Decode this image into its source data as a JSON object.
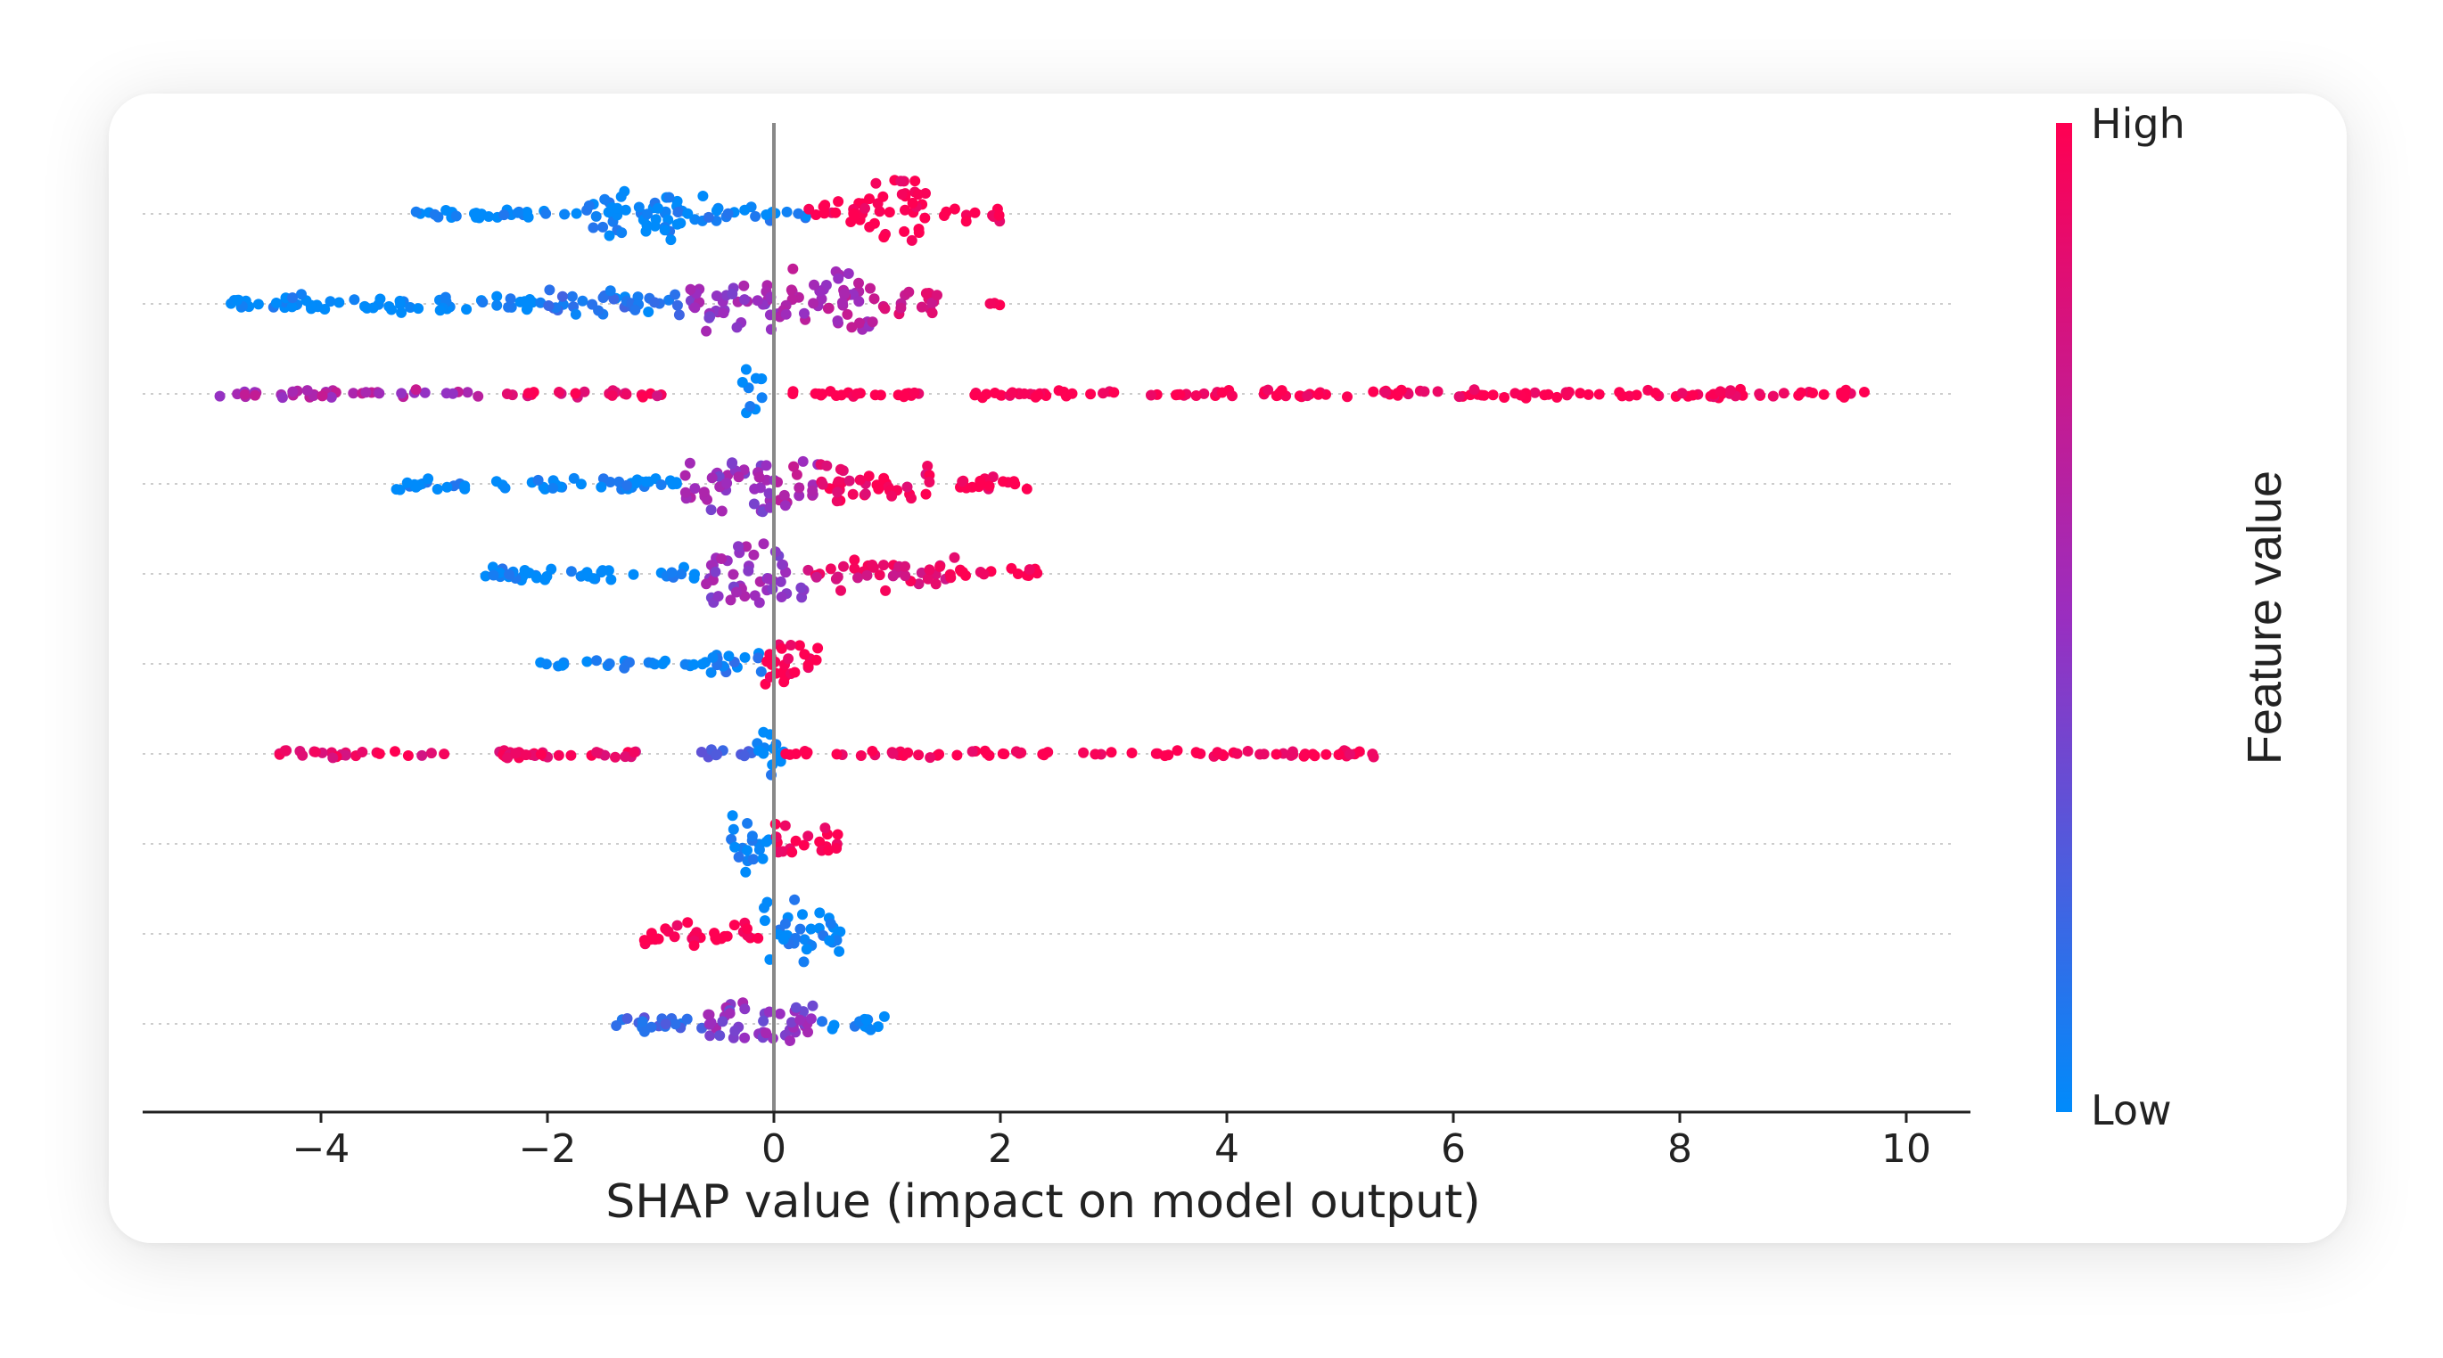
{
  "chart_data": {
    "type": "scatter",
    "subtype": "shap-beeswarm-summary",
    "title": "",
    "xlabel": "SHAP value (impact on model output)",
    "ylabel": "",
    "xlim": [
      -5.6,
      10.4
    ],
    "xticks": [
      -4,
      -2,
      0,
      2,
      4,
      6,
      8,
      10
    ],
    "xtick_labels": [
      "−4",
      "−2",
      "0",
      "2",
      "4",
      "6",
      "8",
      "10"
    ],
    "zero_line": 0,
    "grid": "horizontal dotted row guides",
    "feature_names_visible": false,
    "colors": {
      "low": "#008bfb",
      "mid": "#9a2ec0",
      "high": "#ff0052",
      "zero_line": "#888888",
      "row_guide": "#cccccc"
    },
    "colorbar": {
      "high_label": "High",
      "low_label": "Low",
      "title": "Feature value",
      "placement": "right"
    },
    "rows": [
      {
        "min": -3.3,
        "max": 2.0,
        "segments": [
          {
            "from": -3.3,
            "to": -1.7,
            "color": 0.0,
            "spread": 0.15
          },
          {
            "from": -1.7,
            "to": -0.6,
            "color": 0.0,
            "spread": 0.75
          },
          {
            "from": -0.6,
            "to": 0.3,
            "color": 0.05,
            "spread": 0.2
          },
          {
            "from": 0.3,
            "to": 0.8,
            "color": 1.0,
            "spread": 0.45
          },
          {
            "from": 0.8,
            "to": 1.4,
            "color": 1.0,
            "spread": 0.9
          },
          {
            "from": 1.4,
            "to": 2.0,
            "color": 1.0,
            "spread": 0.2
          }
        ]
      },
      {
        "min": -4.8,
        "max": 2.0,
        "segments": [
          {
            "from": -4.8,
            "to": -2.0,
            "color": 0.0,
            "spread": 0.25
          },
          {
            "from": -2.0,
            "to": -0.8,
            "color": 0.1,
            "spread": 0.4
          },
          {
            "from": -0.8,
            "to": 0.0,
            "color": 0.5,
            "spread": 0.75
          },
          {
            "from": 0.0,
            "to": 0.9,
            "color": 0.6,
            "spread": 0.95
          },
          {
            "from": 0.9,
            "to": 1.5,
            "color": 0.8,
            "spread": 0.35
          },
          {
            "from": 1.9,
            "to": 2.0,
            "color": 1.0,
            "spread": 0.1
          }
        ]
      },
      {
        "min": -5.0,
        "max": 9.7,
        "segments": [
          {
            "from": -5.0,
            "to": -2.6,
            "color": 0.6,
            "spread": 0.12
          },
          {
            "from": -2.4,
            "to": -0.9,
            "color": 0.9,
            "spread": 0.1
          },
          {
            "from": -0.3,
            "to": -0.1,
            "color": 0.0,
            "spread": 0.9
          },
          {
            "from": 0.1,
            "to": 4.0,
            "color": 1.0,
            "spread": 0.1
          },
          {
            "from": 4.0,
            "to": 9.7,
            "color": 1.0,
            "spread": 0.12
          }
        ]
      },
      {
        "min": -3.4,
        "max": 2.3,
        "segments": [
          {
            "from": -3.4,
            "to": -0.8,
            "color": 0.0,
            "spread": 0.2
          },
          {
            "from": -0.8,
            "to": 0.0,
            "color": 0.5,
            "spread": 0.85
          },
          {
            "from": 0.0,
            "to": 0.4,
            "color": 0.6,
            "spread": 0.7
          },
          {
            "from": 0.4,
            "to": 1.4,
            "color": 0.95,
            "spread": 0.6
          },
          {
            "from": 1.4,
            "to": 2.3,
            "color": 1.0,
            "spread": 0.2
          }
        ]
      },
      {
        "min": -2.6,
        "max": 2.4,
        "segments": [
          {
            "from": -2.6,
            "to": -0.6,
            "color": 0.0,
            "spread": 0.2
          },
          {
            "from": -0.6,
            "to": 0.3,
            "color": 0.5,
            "spread": 0.9
          },
          {
            "from": 0.3,
            "to": 1.6,
            "color": 0.85,
            "spread": 0.45
          },
          {
            "from": 1.6,
            "to": 2.4,
            "color": 1.0,
            "spread": 0.15
          }
        ]
      },
      {
        "min": -2.1,
        "max": 0.4,
        "segments": [
          {
            "from": -2.1,
            "to": -0.6,
            "color": 0.0,
            "spread": 0.12
          },
          {
            "from": -0.6,
            "to": -0.1,
            "color": 0.05,
            "spread": 0.4
          },
          {
            "from": -0.1,
            "to": 0.4,
            "color": 1.0,
            "spread": 0.85
          }
        ]
      },
      {
        "min": -4.4,
        "max": 5.3,
        "segments": [
          {
            "from": -4.4,
            "to": -1.0,
            "color": 0.9,
            "spread": 0.12
          },
          {
            "from": -0.7,
            "to": -0.1,
            "color": 0.3,
            "spread": 0.12
          },
          {
            "from": -0.15,
            "to": 0.1,
            "color": 0.0,
            "spread": 0.9
          },
          {
            "from": 0.1,
            "to": 5.3,
            "color": 1.0,
            "spread": 0.1
          }
        ]
      },
      {
        "min": -0.4,
        "max": 0.6,
        "segments": [
          {
            "from": -0.4,
            "to": 0.0,
            "color": 0.0,
            "spread": 0.8
          },
          {
            "from": 0.0,
            "to": 0.6,
            "color": 1.0,
            "spread": 0.5
          }
        ]
      },
      {
        "min": -1.2,
        "max": 0.6,
        "segments": [
          {
            "from": -1.2,
            "to": -0.1,
            "color": 1.0,
            "spread": 0.35
          },
          {
            "from": -0.1,
            "to": 0.6,
            "color": 0.0,
            "spread": 0.85
          }
        ]
      },
      {
        "min": -1.5,
        "max": 1.1,
        "segments": [
          {
            "from": -1.5,
            "to": -0.6,
            "color": 0.2,
            "spread": 0.25
          },
          {
            "from": -0.6,
            "to": 0.4,
            "color": 0.45,
            "spread": 0.8
          },
          {
            "from": 0.4,
            "to": 1.1,
            "color": 0.0,
            "spread": 0.2
          }
        ]
      }
    ]
  }
}
